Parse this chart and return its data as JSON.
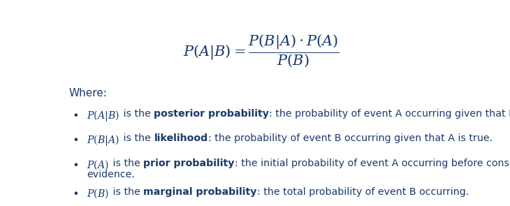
{
  "background_color": "#ffffff",
  "color": "#1a3a6b",
  "figsize": [
    7.3,
    2.95
  ],
  "dpi": 100,
  "formula": "$P(A|B) = \\dfrac{P(B|A) \\cdot P(A)}{P(B)}$",
  "formula_fontsize": 15,
  "where_label": "Where:",
  "where_fontsize": 11,
  "text_fontsize": 10.2,
  "bullet_items": [
    {
      "math": "$P(A|B)$",
      "is_the": " is the ",
      "bold_term": "posterior probability",
      "rest": ": the probability of event A occurring given that B is true."
    },
    {
      "math": "$P(B|A)$",
      "is_the": " is the ",
      "bold_term": "likelihood",
      "rest": ": the probability of event B occurring given that A is true."
    },
    {
      "math": "$P(A)$",
      "is_the": " is the ",
      "bold_term": "prior probability",
      "rest": ": the initial probability of event A occurring before considering the\nevidence."
    },
    {
      "math": "$P(B)$",
      "is_the": " is the ",
      "bold_term": "marginal probability",
      "rest": ": the total probability of event B occurring."
    }
  ]
}
